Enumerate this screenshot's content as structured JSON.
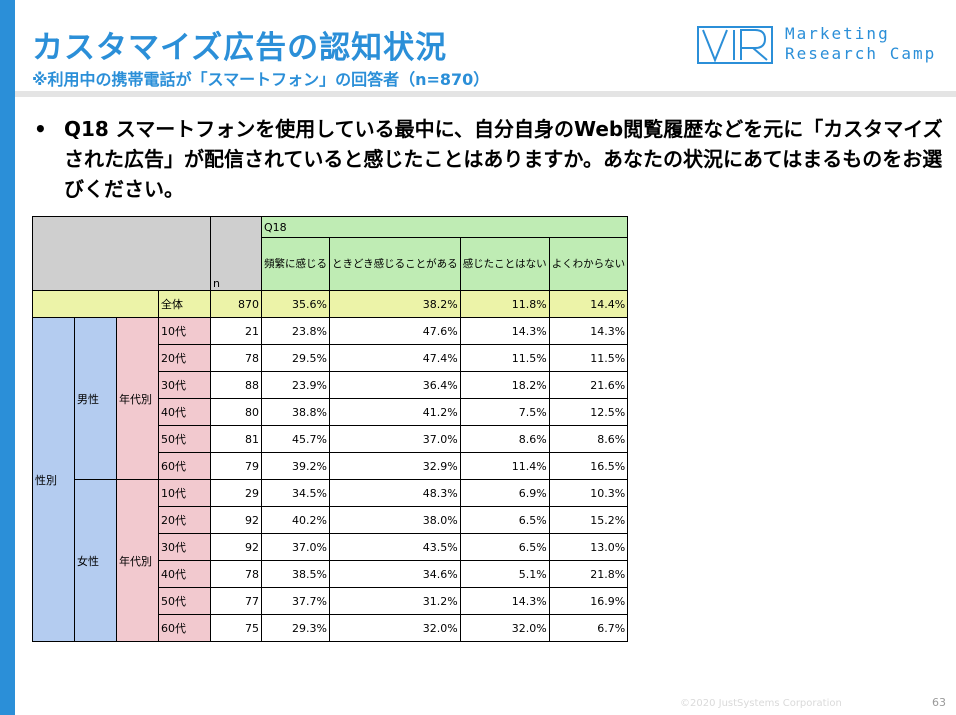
{
  "slide": {
    "title": "カスタマイズ広告の認知状況",
    "subtitle": "※利用中の携帯電話が「スマートフォン」の回答者（n=870）",
    "logo_lines": [
      "Marketing",
      "Research Camp"
    ],
    "bullet": "•",
    "question": "Q18 スマートフォンを使用している最中に、自分自身のWeb閲覧履歴などを元に「カスタマイズされた広告」が配信されていると感じたことはありますか。あなたの状況にあてはまるものをお選びください。",
    "copyright": "©2020 JustSystems Corporation",
    "page_number": "63"
  },
  "table": {
    "q_label": "Q18",
    "n_label": "n",
    "columns": [
      "頻繁に感じる",
      "ときどき感じることがある",
      "感じたことはない",
      "よくわからない"
    ],
    "labels": {
      "total": "全体",
      "gender_group": "性別",
      "age_group": "年代別",
      "male": "男性",
      "female": "女性"
    },
    "total_row": {
      "n": "870",
      "values": [
        "35.6%",
        "38.2%",
        "11.8%",
        "14.4%"
      ]
    },
    "male_rows": [
      {
        "age": "10代",
        "n": "21",
        "values": [
          "23.8%",
          "47.6%",
          "14.3%",
          "14.3%"
        ]
      },
      {
        "age": "20代",
        "n": "78",
        "values": [
          "29.5%",
          "47.4%",
          "11.5%",
          "11.5%"
        ]
      },
      {
        "age": "30代",
        "n": "88",
        "values": [
          "23.9%",
          "36.4%",
          "18.2%",
          "21.6%"
        ]
      },
      {
        "age": "40代",
        "n": "80",
        "values": [
          "38.8%",
          "41.2%",
          "7.5%",
          "12.5%"
        ]
      },
      {
        "age": "50代",
        "n": "81",
        "values": [
          "45.7%",
          "37.0%",
          "8.6%",
          "8.6%"
        ]
      },
      {
        "age": "60代",
        "n": "79",
        "values": [
          "39.2%",
          "32.9%",
          "11.4%",
          "16.5%"
        ]
      }
    ],
    "female_rows": [
      {
        "age": "10代",
        "n": "29",
        "values": [
          "34.5%",
          "48.3%",
          "6.9%",
          "10.3%"
        ]
      },
      {
        "age": "20代",
        "n": "92",
        "values": [
          "40.2%",
          "38.0%",
          "6.5%",
          "15.2%"
        ]
      },
      {
        "age": "30代",
        "n": "92",
        "values": [
          "37.0%",
          "43.5%",
          "6.5%",
          "13.0%"
        ]
      },
      {
        "age": "40代",
        "n": "78",
        "values": [
          "38.5%",
          "34.6%",
          "5.1%",
          "21.8%"
        ]
      },
      {
        "age": "50代",
        "n": "77",
        "values": [
          "37.7%",
          "31.2%",
          "14.3%",
          "16.9%"
        ]
      },
      {
        "age": "60代",
        "n": "75",
        "values": [
          "29.3%",
          "32.0%",
          "32.0%",
          "6.7%"
        ]
      }
    ]
  },
  "colors": {
    "accent": "#2b8fd8",
    "header_gray": "#cfcfcf",
    "header_green": "#bfecb4",
    "total_yellow": "#ecf3a8",
    "gender_blue": "#b4ccf0",
    "age_pink": "#f2c9cf"
  }
}
